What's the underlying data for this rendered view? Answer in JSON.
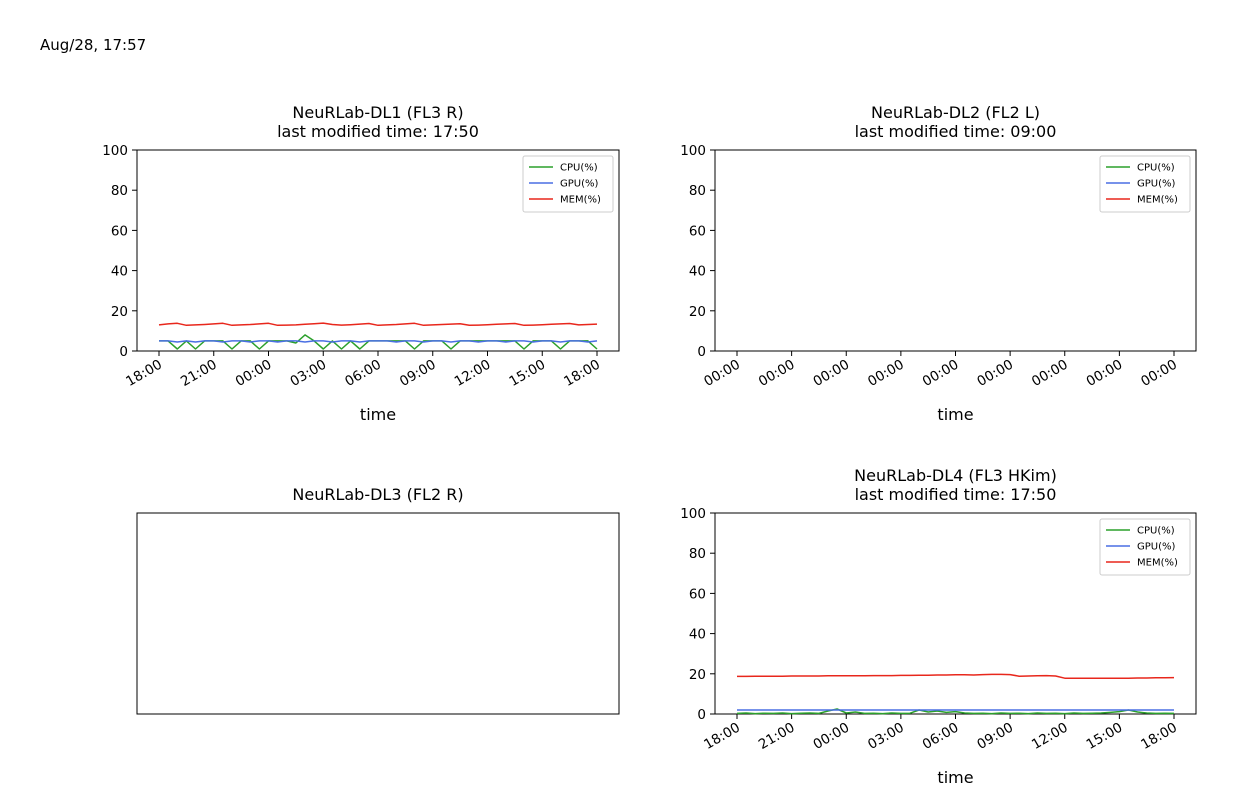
{
  "header": {
    "timestamp": "Aug/28, 17:57"
  },
  "colors": {
    "cpu": "#2ca02c",
    "gpu": "#4a6fe3",
    "mem": "#e8271c",
    "axes": "#000000"
  },
  "chart_data": [
    {
      "type": "line",
      "title": "NeuRLab-DL1 (FL3 R)",
      "subtitle": "last modified time: 17:50",
      "xlabel": "time",
      "ylabel": "",
      "ylim": [
        0,
        100
      ],
      "yticks": [
        "0",
        "20",
        "40",
        "60",
        "80",
        "100"
      ],
      "xticks": [
        "18:00",
        "21:00",
        "00:00",
        "03:00",
        "06:00",
        "09:00",
        "12:00",
        "15:00",
        "18:00"
      ],
      "legend_position": "top-right",
      "x_hours": [
        0,
        0.5,
        1,
        1.5,
        2,
        2.5,
        3,
        3.5,
        4,
        4.5,
        5,
        5.5,
        6,
        6.5,
        7,
        7.5,
        8,
        8.5,
        9,
        9.5,
        10,
        10.5,
        11,
        11.5,
        12,
        12.5,
        13,
        13.5,
        14,
        14.5,
        15,
        15.5,
        16,
        16.5,
        17,
        17.5,
        18,
        18.5,
        19,
        19.5,
        20,
        20.5,
        21,
        21.5,
        22,
        22.5,
        23,
        23.5,
        24
      ],
      "series": [
        {
          "name": "CPU(%)",
          "values": [
            5,
            5,
            1,
            5,
            1,
            5,
            5,
            5,
            1,
            5,
            5,
            1,
            5,
            5,
            5,
            4,
            8,
            5,
            1,
            5,
            1,
            5,
            1,
            5,
            5,
            5,
            5,
            5,
            1,
            5,
            5,
            5,
            1,
            5,
            5,
            5,
            5,
            5,
            5,
            5,
            1,
            5,
            5,
            5,
            1,
            5,
            5,
            5,
            1
          ]
        },
        {
          "name": "GPU(%)",
          "values": [
            5,
            5,
            4.5,
            5,
            4.5,
            5,
            5,
            4.5,
            5,
            5,
            4.5,
            5,
            5,
            4.5,
            5,
            5,
            4.5,
            5,
            5,
            4.5,
            5,
            5,
            4.5,
            5,
            5,
            5,
            4.5,
            5,
            5,
            4.5,
            5,
            5,
            4.5,
            5,
            5,
            4.5,
            5,
            5,
            4.5,
            5,
            5,
            4.5,
            5,
            5,
            4.5,
            5,
            5,
            4.5,
            5
          ]
        },
        {
          "name": "MEM(%)",
          "values": [
            13,
            13.5,
            13.8,
            12.8,
            13,
            13.2,
            13.5,
            13.8,
            12.8,
            13,
            13.2,
            13.5,
            13.8,
            12.8,
            12.9,
            13,
            13.3,
            13.6,
            13.9,
            13.2,
            12.9,
            13.1,
            13.4,
            13.7,
            12.8,
            13,
            13.2,
            13.5,
            13.8,
            12.8,
            13,
            13.2,
            13.4,
            13.6,
            12.8,
            12.9,
            13.1,
            13.3,
            13.5,
            13.7,
            12.8,
            12.9,
            13.1,
            13.3,
            13.5,
            13.7,
            13,
            13.2,
            13.4
          ]
        }
      ]
    },
    {
      "type": "line",
      "title": "NeuRLab-DL2 (FL2 L)",
      "subtitle": "last modified time: 09:00",
      "xlabel": "time",
      "ylabel": "",
      "ylim": [
        0,
        100
      ],
      "yticks": [
        "0",
        "20",
        "40",
        "60",
        "80",
        "100"
      ],
      "xticks": [
        "00:00",
        "00:00",
        "00:00",
        "00:00",
        "00:00",
        "00:00",
        "00:00",
        "00:00",
        "00:00"
      ],
      "legend_position": "top-right",
      "x_hours": [],
      "series": [
        {
          "name": "CPU(%)",
          "values": []
        },
        {
          "name": "GPU(%)",
          "values": []
        },
        {
          "name": "MEM(%)",
          "values": []
        }
      ]
    },
    {
      "type": "line",
      "title": "NeuRLab-DL3 (FL2 R)",
      "subtitle": "",
      "xlabel": "",
      "ylabel": "",
      "ylim": [],
      "yticks": [],
      "xticks": [],
      "legend_position": "",
      "x_hours": [],
      "series": []
    },
    {
      "type": "line",
      "title": "NeuRLab-DL4 (FL3 HKim)",
      "subtitle": "last modified time: 17:50",
      "xlabel": "time",
      "ylabel": "",
      "ylim": [
        0,
        100
      ],
      "yticks": [
        "0",
        "20",
        "40",
        "60",
        "80",
        "100"
      ],
      "xticks": [
        "18:00",
        "21:00",
        "00:00",
        "03:00",
        "06:00",
        "09:00",
        "12:00",
        "15:00",
        "18:00"
      ],
      "legend_position": "top-right",
      "x_hours": [
        0,
        0.5,
        1,
        1.5,
        2,
        2.5,
        3,
        3.5,
        4,
        4.5,
        5,
        5.5,
        6,
        6.5,
        7,
        7.5,
        8,
        8.5,
        9,
        9.5,
        10,
        10.5,
        11,
        11.5,
        12,
        12.5,
        13,
        13.5,
        14,
        14.5,
        15,
        15.5,
        16,
        16.5,
        17,
        17.5,
        18,
        18.5,
        19,
        19.5,
        20,
        20.5,
        21,
        21.5,
        22,
        22.5,
        23,
        23.5,
        24
      ],
      "series": [
        {
          "name": "CPU(%)",
          "values": [
            0.3,
            0.5,
            0.2,
            0.4,
            0.3,
            0.5,
            0.2,
            0.4,
            0.5,
            0.3,
            1.5,
            2.5,
            0.5,
            1,
            0.3,
            0.4,
            0.2,
            0.5,
            0.3,
            0.4,
            2,
            1,
            1.5,
            0.8,
            1.2,
            0.5,
            0.3,
            0.4,
            0.2,
            0.5,
            0.3,
            0.4,
            0.2,
            0.5,
            0.3,
            0.4,
            0.2,
            0.5,
            0.3,
            0.4,
            0.5,
            0.8,
            1.2,
            2,
            1,
            0.5,
            0.3,
            0.4,
            0.3
          ]
        },
        {
          "name": "GPU(%)",
          "values": [
            2,
            2,
            2,
            2,
            2,
            2,
            2,
            2,
            2,
            2,
            2,
            2,
            2,
            2,
            2,
            2,
            2,
            2,
            2,
            2,
            2,
            2,
            2,
            2,
            2,
            2,
            2,
            2,
            2,
            2,
            2,
            2,
            2,
            2,
            2,
            2,
            2,
            2,
            2,
            2,
            2,
            2,
            2,
            2,
            2,
            2,
            2,
            2,
            2
          ]
        },
        {
          "name": "MEM(%)",
          "values": [
            18.7,
            18.7,
            18.8,
            18.8,
            18.8,
            18.8,
            18.9,
            18.9,
            18.9,
            18.9,
            19,
            19,
            19,
            19,
            19,
            19.1,
            19.1,
            19.1,
            19.2,
            19.2,
            19.3,
            19.3,
            19.4,
            19.4,
            19.5,
            19.5,
            19.4,
            19.6,
            19.7,
            19.7,
            19.6,
            18.8,
            18.9,
            19,
            19.1,
            18.9,
            17.8,
            17.8,
            17.8,
            17.8,
            17.8,
            17.8,
            17.8,
            17.8,
            17.9,
            17.9,
            18,
            18,
            18.1
          ]
        }
      ]
    }
  ]
}
